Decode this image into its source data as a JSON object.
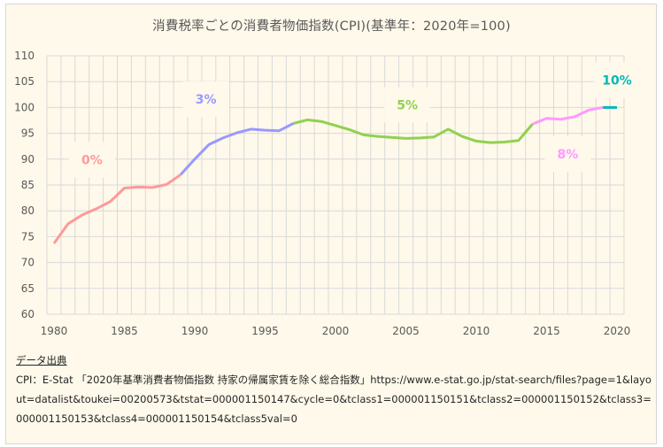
{
  "chart_data": {
    "type": "line",
    "title": "消費税率ごとの消費者物価指数(CPI)(基準年：2020年=100)",
    "xlabel": "",
    "ylabel": "",
    "ylim": [
      60,
      110
    ],
    "yticks": [
      60,
      65,
      70,
      75,
      80,
      85,
      90,
      95,
      100,
      105,
      110
    ],
    "xticks": [
      1980,
      1985,
      1990,
      1995,
      2000,
      2005,
      2010,
      2015,
      2020
    ],
    "grid": true,
    "legend": "none (inline segment labels)",
    "x": [
      1980,
      1981,
      1982,
      1983,
      1984,
      1985,
      1986,
      1987,
      1988,
      1989,
      1990,
      1991,
      1992,
      1993,
      1994,
      1995,
      1996,
      1997,
      1998,
      1999,
      2000,
      2001,
      2002,
      2003,
      2004,
      2005,
      2006,
      2007,
      2008,
      2009,
      2010,
      2011,
      2012,
      2013,
      2014,
      2015,
      2016,
      2017,
      2018,
      2019,
      2020
    ],
    "values": [
      73.7,
      77.5,
      79.2,
      80.4,
      81.8,
      84.4,
      84.6,
      84.5,
      85.1,
      87.0,
      90.0,
      92.8,
      94.1,
      95.1,
      95.8,
      95.6,
      95.5,
      96.9,
      97.6,
      97.3,
      96.5,
      95.7,
      94.7,
      94.4,
      94.2,
      94.0,
      94.1,
      94.3,
      95.8,
      94.4,
      93.5,
      93.2,
      93.3,
      93.6,
      96.8,
      97.9,
      97.7,
      98.2,
      99.5,
      100.0,
      100.0
    ],
    "series": [
      {
        "name": "0%",
        "from": 1980,
        "to": 1989,
        "color": "#ff9999",
        "label_year": 1982.7,
        "label_value": 89.9
      },
      {
        "name": "3%",
        "from": 1989,
        "to": 1997,
        "color": "#9999ff",
        "label_year": 1990.8,
        "label_value": 101.6
      },
      {
        "name": "5%",
        "from": 1997,
        "to": 2014,
        "color": "#92d050",
        "label_year": 2005.1,
        "label_value": 100.5
      },
      {
        "name": "8%",
        "from": 2014,
        "to": 2019,
        "color": "#ff99ff",
        "label_year": 2016.5,
        "label_value": 91.0
      },
      {
        "name": "10%",
        "from": 2019,
        "to": 2020,
        "color": "#00b8b8",
        "label_year": 2020.0,
        "label_value": 105.3
      }
    ]
  },
  "source": {
    "heading": "データ出典",
    "text": "CPI：E-Stat 「2020年基準消費者物価指数 持家の帰属家賃を除く総合指数」https://www.e-stat.go.jp/stat-search/files?page=1&layout=datalist&toukei=00200573&tstat=000001150147&cycle=0&tclass1=000001150151&tclass2=000001150152&tclass3=000001150153&tclass4=000001150154&tclass5val=0"
  }
}
